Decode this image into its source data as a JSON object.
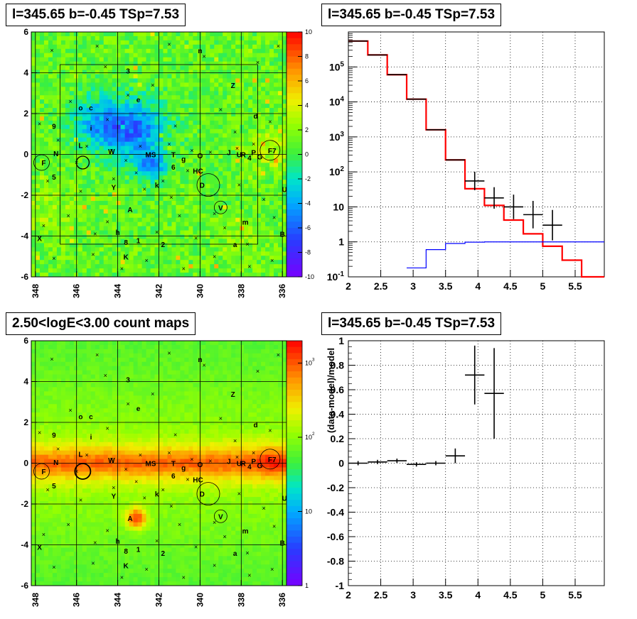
{
  "panels": {
    "top_left_title": "l=345.65 b=-0.45 TSp=7.53",
    "top_right_title": "l=345.65 b=-0.45 TSp=7.53",
    "bottom_left_title": "2.50<logE<3.00 count maps",
    "bottom_right_title": "l=345.65 b=-0.45 TSp=7.53"
  },
  "map_source_labels": [
    "n",
    "3",
    "Z",
    "e",
    "o",
    "c",
    "d",
    "9",
    "i",
    "N",
    "L",
    "W",
    "MS",
    "T",
    "g",
    "O",
    "J",
    "U",
    "R",
    "4",
    "P",
    "G",
    "F7",
    "F",
    "5",
    "6",
    "HC",
    "k",
    "D",
    "Y",
    "U",
    "A",
    "V",
    "m",
    "h",
    "8",
    "1",
    "2",
    "a",
    "K",
    "X",
    "B"
  ],
  "chart_data": [
    {
      "type": "heatmap",
      "name": "residual significance map",
      "x_ticks": [
        "348",
        "346",
        "344",
        "342",
        "340",
        "338",
        "336"
      ],
      "y_ticks": [
        "6",
        "4",
        "2",
        "0",
        "-2",
        "-4",
        "-6"
      ],
      "xlim": [
        348.2,
        335.8
      ],
      "ylim": [
        -6,
        6
      ],
      "colorbar_ticks": [
        "10",
        "8",
        "6",
        "4",
        "2",
        "0",
        "-2",
        "-4",
        "-6",
        "-8",
        "-10"
      ],
      "colorbar_range": [
        -10,
        10
      ]
    },
    {
      "type": "line",
      "name": "energy spectrum",
      "x_ticks": [
        "2",
        "2.5",
        "3",
        "3.5",
        "4",
        "4.5",
        "5",
        "5.5"
      ],
      "y_ticks": [
        "10^5",
        "10^4",
        "10^3",
        "10^2",
        "10",
        "1",
        "10^-1"
      ],
      "xlim": [
        2,
        5.95
      ],
      "ylim": [
        0.1,
        1000000
      ],
      "y_scale": "log",
      "grid": true,
      "series": [
        {
          "color": "#ff0000",
          "bins": [
            [
              2.0,
              2.3,
              550000
            ],
            [
              2.3,
              2.6,
              220000
            ],
            [
              2.6,
              2.9,
              60000
            ],
            [
              2.9,
              3.2,
              12000
            ],
            [
              3.2,
              3.5,
              1600
            ],
            [
              3.5,
              3.8,
              220
            ],
            [
              3.8,
              4.1,
              33
            ],
            [
              4.1,
              4.4,
              11
            ],
            [
              4.4,
              4.7,
              4.2
            ],
            [
              4.7,
              5.0,
              1.7
            ],
            [
              5.0,
              5.3,
              0.75
            ],
            [
              5.3,
              5.6,
              0.3
            ],
            [
              5.6,
              5.95,
              0.1
            ]
          ]
        },
        {
          "color": "#0000ff",
          "bins": [
            [
              2.9,
              3.2,
              0.18
            ],
            [
              3.2,
              3.5,
              0.6
            ],
            [
              3.5,
              3.8,
              0.9
            ],
            [
              3.8,
              4.1,
              0.98
            ],
            [
              4.1,
              5.95,
              1.0
            ]
          ]
        },
        {
          "color": "#000000",
          "points": [
            [
              2.15,
              550000
            ],
            [
              2.45,
              220000
            ],
            [
              2.75,
              60000
            ],
            [
              3.05,
              12000
            ],
            [
              3.35,
              1600
            ],
            [
              3.65,
              220
            ],
            [
              3.95,
              55
            ],
            [
              4.25,
              18
            ],
            [
              4.55,
              10
            ],
            [
              4.85,
              6
            ],
            [
              5.15,
              3
            ]
          ]
        }
      ]
    },
    {
      "type": "heatmap",
      "name": "count map",
      "x_ticks": [
        "348",
        "346",
        "344",
        "342",
        "340",
        "338",
        "336"
      ],
      "y_ticks": [
        "6",
        "4",
        "2",
        "0",
        "-2",
        "-4",
        "-6"
      ],
      "xlim": [
        348.2,
        335.8
      ],
      "ylim": [
        -6,
        6
      ],
      "colorbar_ticks": [
        "10^3",
        "10^2",
        "10",
        "1"
      ],
      "colorbar_range": [
        1,
        2000
      ]
    },
    {
      "type": "scatter",
      "name": "residuals",
      "x_ticks": [
        "2",
        "2.5",
        "3",
        "3.5",
        "4",
        "4.5",
        "5",
        "5.5"
      ],
      "y_ticks": [
        "1",
        "0.8",
        "0.6",
        "0.4",
        "0.2",
        "0",
        "-0.2",
        "-0.4",
        "-0.6",
        "-0.8",
        "-1"
      ],
      "ylabel": "(data-model)/model",
      "xlim": [
        2,
        5.95
      ],
      "ylim": [
        -1,
        1
      ],
      "grid": true,
      "points": [
        {
          "x": 2.15,
          "y": 0.0,
          "err": 0.0
        },
        {
          "x": 2.45,
          "y": 0.01,
          "err": 0.0
        },
        {
          "x": 2.75,
          "y": 0.02,
          "err": 0.0
        },
        {
          "x": 3.05,
          "y": -0.01,
          "err": 0.0
        },
        {
          "x": 3.35,
          "y": 0.0,
          "err": 0.0
        },
        {
          "x": 3.65,
          "y": 0.06,
          "err": 0.06
        },
        {
          "x": 3.95,
          "y": 0.72,
          "err": 0.24
        },
        {
          "x": 4.25,
          "y": 0.57,
          "err": 0.37
        }
      ]
    }
  ]
}
